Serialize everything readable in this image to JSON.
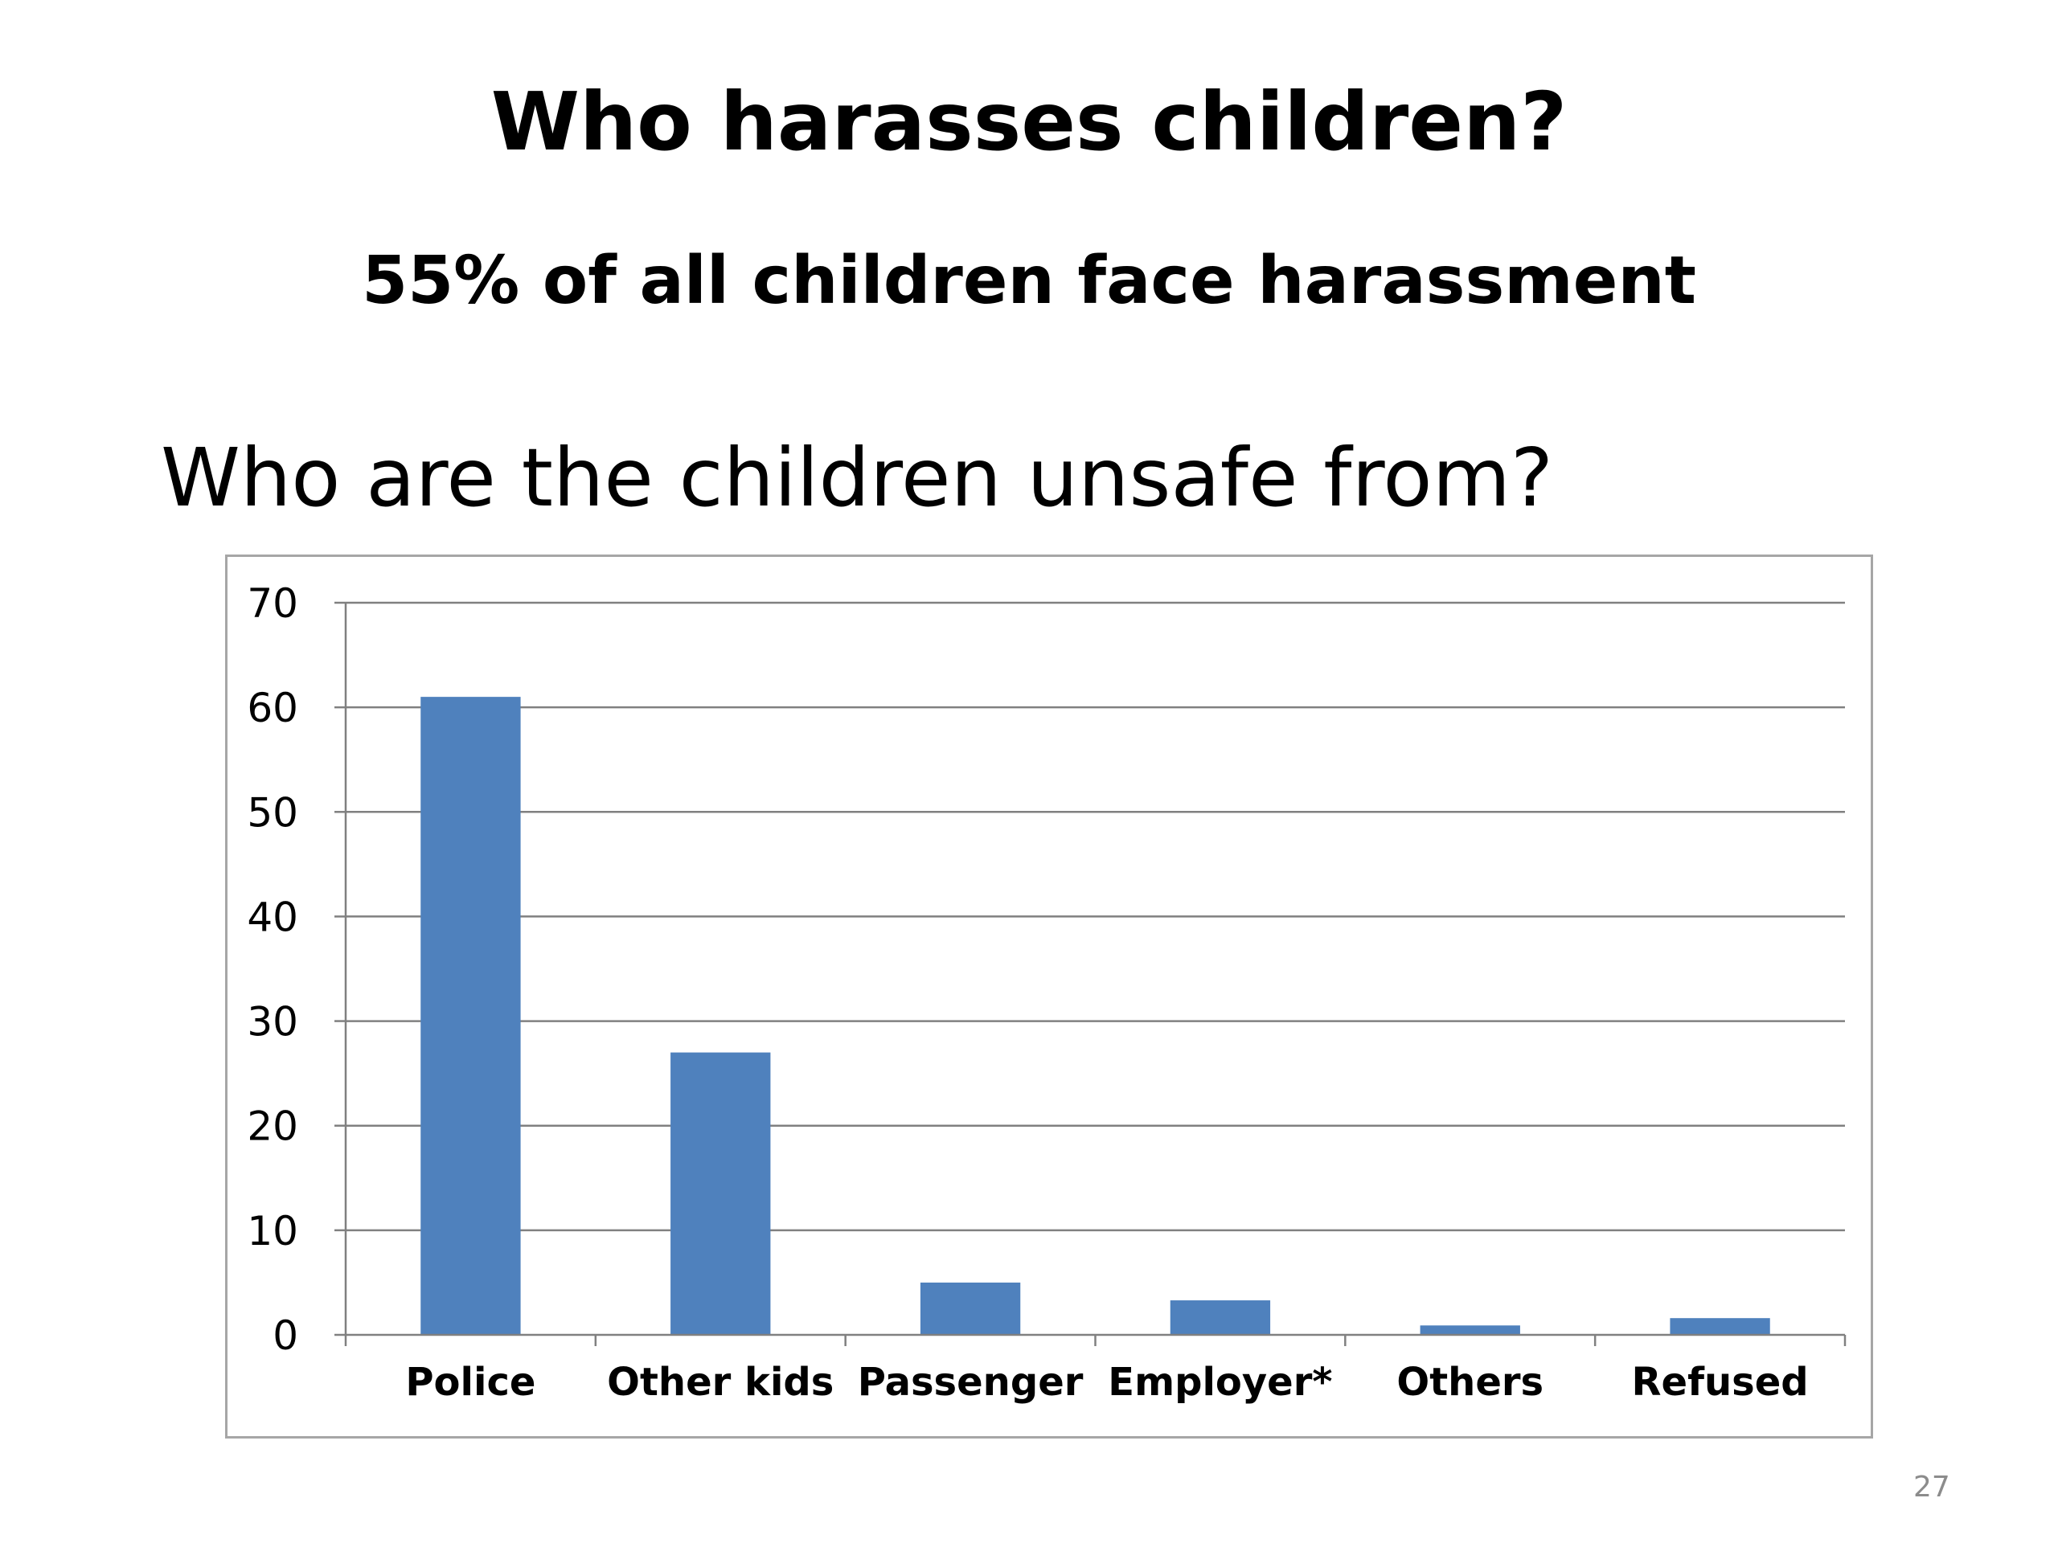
{
  "slide": {
    "title": "Who harasses children?",
    "subtitle": "55% of all children face harassment",
    "question": "Who are the children unsafe from?",
    "page_number": "27"
  },
  "colors": {
    "bar": "#4f81bd",
    "gridline": "#808080",
    "axis": "#808080"
  },
  "chart_data": {
    "type": "bar",
    "categories": [
      "Police",
      "Other kids",
      "Passenger",
      "Employer*",
      "Others",
      "Refused"
    ],
    "values": [
      61,
      27,
      5,
      3.3,
      0.9,
      1.6
    ],
    "ylim": [
      0,
      70
    ],
    "yticks": [
      0,
      10,
      20,
      30,
      40,
      50,
      60,
      70
    ],
    "grid": true,
    "legend": "none"
  }
}
